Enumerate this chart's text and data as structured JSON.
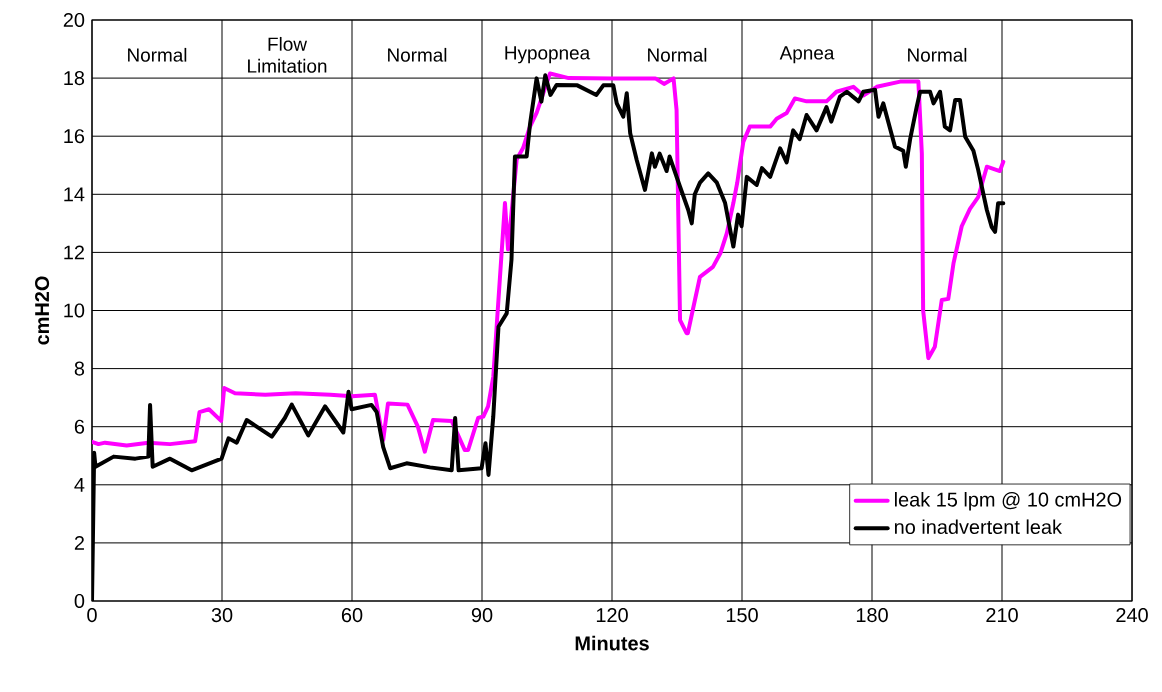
{
  "chart_data": {
    "type": "line",
    "xlabel": "Minutes",
    "ylabel": "cmH2O",
    "xlim": [
      0,
      240
    ],
    "xticks": [
      0,
      30,
      60,
      90,
      120,
      150,
      180,
      210,
      240
    ],
    "ylim": [
      0,
      20
    ],
    "yticks": [
      0,
      2,
      4,
      6,
      8,
      10,
      12,
      14,
      16,
      18,
      20
    ],
    "grid": true,
    "legend": "bottom right",
    "marker": "none",
    "line_style": "solid",
    "annotations": [
      "Normal",
      "Flow Limitation",
      "Normal",
      "Hypopnea",
      "Normal",
      "Apnea",
      "Normal"
    ],
    "series": [
      {
        "name": "leak 15 lpm @ 10 cmH2O",
        "color": "#ff00ff",
        "x": [
          0,
          1.5,
          3,
          8,
          13,
          18,
          23.8,
          24.8,
          27,
          29.8,
          30.5,
          33,
          40,
          47,
          55,
          60,
          65.3,
          67.2,
          68.3,
          72.8,
          75.2,
          76.8,
          78.7,
          83,
          86,
          86.8,
          89.1,
          90.3,
          91.4,
          92.6,
          95.3,
          96,
          98,
          99.5,
          101,
          102.6,
          105.7,
          110,
          120,
          130,
          132,
          134.2,
          134.9,
          135.7,
          137.2,
          137.5,
          138.8,
          140.3,
          143.3,
          145,
          146.5,
          148,
          148.9,
          150.3,
          151.8,
          156.5,
          158,
          160.3,
          162.2,
          164.9,
          169.5,
          171.8,
          175.7,
          178,
          181.1,
          186.5,
          190.7,
          191.5,
          191.8,
          193,
          194.5,
          196.1,
          197.6,
          198.8,
          200.7,
          202.6,
          204.5,
          206.5,
          209.5,
          210.3
        ],
        "values": [
          5.48,
          5.4,
          5.45,
          5.35,
          5.45,
          5.4,
          5.5,
          6.5,
          6.6,
          6.2,
          7.33,
          7.15,
          7.1,
          7.15,
          7.1,
          7.05,
          7.1,
          5.54,
          6.8,
          6.76,
          6.0,
          5.14,
          6.23,
          6.2,
          5.2,
          5.2,
          6.3,
          6.35,
          6.7,
          7.72,
          13.7,
          12.1,
          15.2,
          15.6,
          16.3,
          16.8,
          18.16,
          18.0,
          17.99,
          17.99,
          17.8,
          17.99,
          16.9,
          9.67,
          9.22,
          9.22,
          10.13,
          11.16,
          11.5,
          11.97,
          12.66,
          13.7,
          14.4,
          15.8,
          16.33,
          16.33,
          16.6,
          16.8,
          17.3,
          17.2,
          17.2,
          17.53,
          17.7,
          17.4,
          17.7,
          17.88,
          17.88,
          15.4,
          10.0,
          8.36,
          8.75,
          10.36,
          10.4,
          11.62,
          12.9,
          13.5,
          13.9,
          14.95,
          14.8,
          15.12
        ]
      },
      {
        "name": "no inadvertent leak",
        "color": "#000000",
        "x": [
          0,
          0.5,
          0.8,
          5,
          10,
          13,
          13.4,
          14,
          18,
          23,
          29.9,
          31.5,
          33.4,
          35.7,
          41.5,
          44.5,
          46.1,
          49.9,
          53.8,
          58,
          59.2,
          59.9,
          64.5,
          65.7,
          67.2,
          68.8,
          72.6,
          78,
          83,
          83.8,
          84.6,
          89.9,
          90.8,
          91.5,
          92.6,
          93.8,
          95.7,
          96.8,
          97.6,
          100.3,
          101.1,
          102.6,
          103.7,
          104.6,
          105.8,
          107.2,
          112,
          116.4,
          118,
          120.3,
          121.1,
          122.6,
          123.4,
          124.2,
          125.7,
          127.6,
          129.2,
          129.9,
          131,
          132.6,
          133.3,
          135.7,
          137.6,
          138.4,
          139.1,
          140.3,
          142.2,
          144.2,
          146.1,
          148,
          149.1,
          149.9,
          151.1,
          153.4,
          154.6,
          156.5,
          158.8,
          160.3,
          161.8,
          163.3,
          164.9,
          167.2,
          169.5,
          170.6,
          172.6,
          174.2,
          176.9,
          178,
          180.7,
          181.5,
          182.6,
          185.3,
          187.2,
          187.8,
          188.8,
          190.3,
          191.1,
          193.4,
          194.2,
          195.7,
          196.8,
          198,
          199.2,
          200.3,
          201.5,
          203.4,
          204.5,
          206.5,
          207.6,
          208.4,
          209.1,
          210.3
        ],
        "values": [
          0,
          5.1,
          4.62,
          4.97,
          4.9,
          4.97,
          6.75,
          4.62,
          4.9,
          4.5,
          4.9,
          5.6,
          5.45,
          6.23,
          5.66,
          6.3,
          6.76,
          5.7,
          6.7,
          5.8,
          7.2,
          6.6,
          6.75,
          6.5,
          5.3,
          4.57,
          4.74,
          4.6,
          4.5,
          6.3,
          4.5,
          4.57,
          5.43,
          4.34,
          6.35,
          9.44,
          9.9,
          11.74,
          15.3,
          15.3,
          16.44,
          17.99,
          17.19,
          18.1,
          17.42,
          17.76,
          17.75,
          17.42,
          17.75,
          17.75,
          17.13,
          16.67,
          17.48,
          16.1,
          15.18,
          14.15,
          15.41,
          14.95,
          15.4,
          14.8,
          15.3,
          14.26,
          13.46,
          13.0,
          14.0,
          14.4,
          14.72,
          14.4,
          13.7,
          12.2,
          13.3,
          12.9,
          14.6,
          14.32,
          14.9,
          14.6,
          15.58,
          15.1,
          16.2,
          15.9,
          16.73,
          16.2,
          17.0,
          16.5,
          17.36,
          17.53,
          17.2,
          17.53,
          17.6,
          16.67,
          17.13,
          15.64,
          15.5,
          14.95,
          15.9,
          17.0,
          17.53,
          17.53,
          17.13,
          17.53,
          16.33,
          16.2,
          17.25,
          17.25,
          15.98,
          15.5,
          14.84,
          13.46,
          12.88,
          12.71,
          13.69,
          13.69
        ]
      }
    ]
  }
}
